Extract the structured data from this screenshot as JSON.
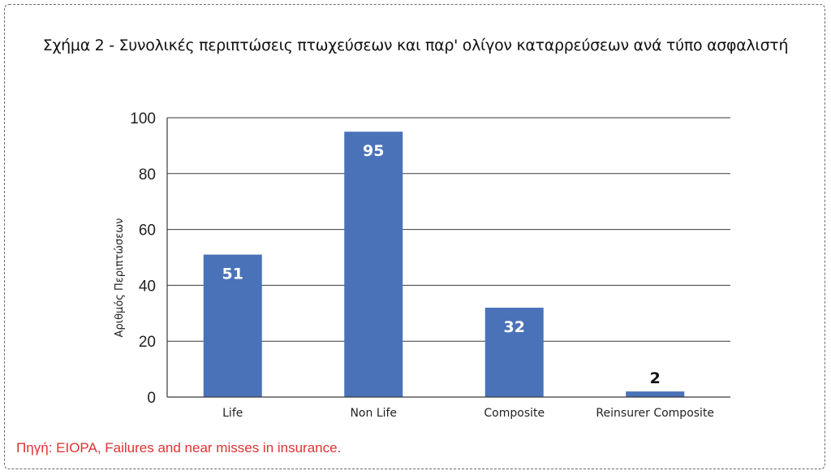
{
  "title": "Σχήμα 2 - Συνολικές περιπτώσεις πτωχεύσεων και παρ' ολίγον καταρρεύσεων ανά τύπο ασφαλιστή",
  "source": "Πηγή: EIOPA, Failures and near misses in insurance.",
  "chart_data": {
    "type": "bar",
    "title": "Σχήμα 2 - Συνολικές περιπτώσεις πτωχεύσεων και παρ' ολίγον καταρρεύσεων ανά τύπο ασφαλιστή",
    "categories": [
      "Life",
      "Non Life",
      "Composite",
      "Reinsurer Composite"
    ],
    "values": [
      51,
      95,
      32,
      2
    ],
    "data_labels": [
      "51",
      "95",
      "32",
      "2"
    ],
    "xlabel": "",
    "ylabel": "Αριθμός Περιπτώσεων",
    "ylim": [
      0,
      100
    ],
    "yticks": [
      0,
      20,
      40,
      60,
      80,
      100
    ],
    "grid": true,
    "legend": "none",
    "bar_color": "#4a72b8"
  }
}
